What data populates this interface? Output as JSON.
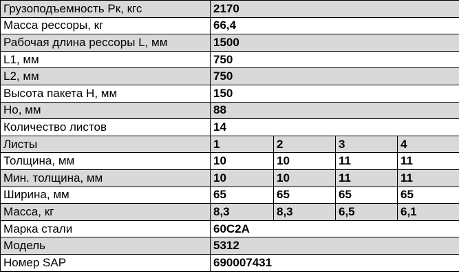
{
  "rows": [
    {
      "label": "Грузоподъемность Рк, кгс",
      "values": [
        "2170"
      ]
    },
    {
      "label": "Масса рессоры, кг",
      "values": [
        "66,4"
      ]
    },
    {
      "label": "Рабочая длина рессоры L, мм",
      "values": [
        "1500"
      ]
    },
    {
      "label": "L1, мм",
      "values": [
        "750"
      ]
    },
    {
      "label": "L2, мм",
      "values": [
        "750"
      ]
    },
    {
      "label": "Высота пакета H, мм",
      "values": [
        "150"
      ]
    },
    {
      "label": "Но, мм",
      "values": [
        "88"
      ]
    },
    {
      "label": "Количество листов",
      "values": [
        "14"
      ]
    },
    {
      "label": "Листы",
      "values": [
        "1",
        "2",
        "3",
        "4"
      ]
    },
    {
      "label": "Толщина, мм",
      "values": [
        "10",
        "10",
        "11",
        "11"
      ]
    },
    {
      "label": "Мин. толщина, мм",
      "values": [
        "10",
        "10",
        "11",
        "11"
      ]
    },
    {
      "label": "Ширина, мм",
      "values": [
        "65",
        "65",
        "65",
        "65"
      ]
    },
    {
      "label": "Масса, кг",
      "values": [
        "8,3",
        "8,3",
        "6,5",
        "6,1"
      ]
    },
    {
      "label": "Марка стали",
      "values": [
        "60С2А"
      ]
    },
    {
      "label": "Модель",
      "values": [
        "5312"
      ]
    },
    {
      "label": "Номер SAP",
      "values": [
        "690007431"
      ]
    }
  ],
  "colors": {
    "shaded_row": "#d9d9d9",
    "border": "#000000"
  }
}
